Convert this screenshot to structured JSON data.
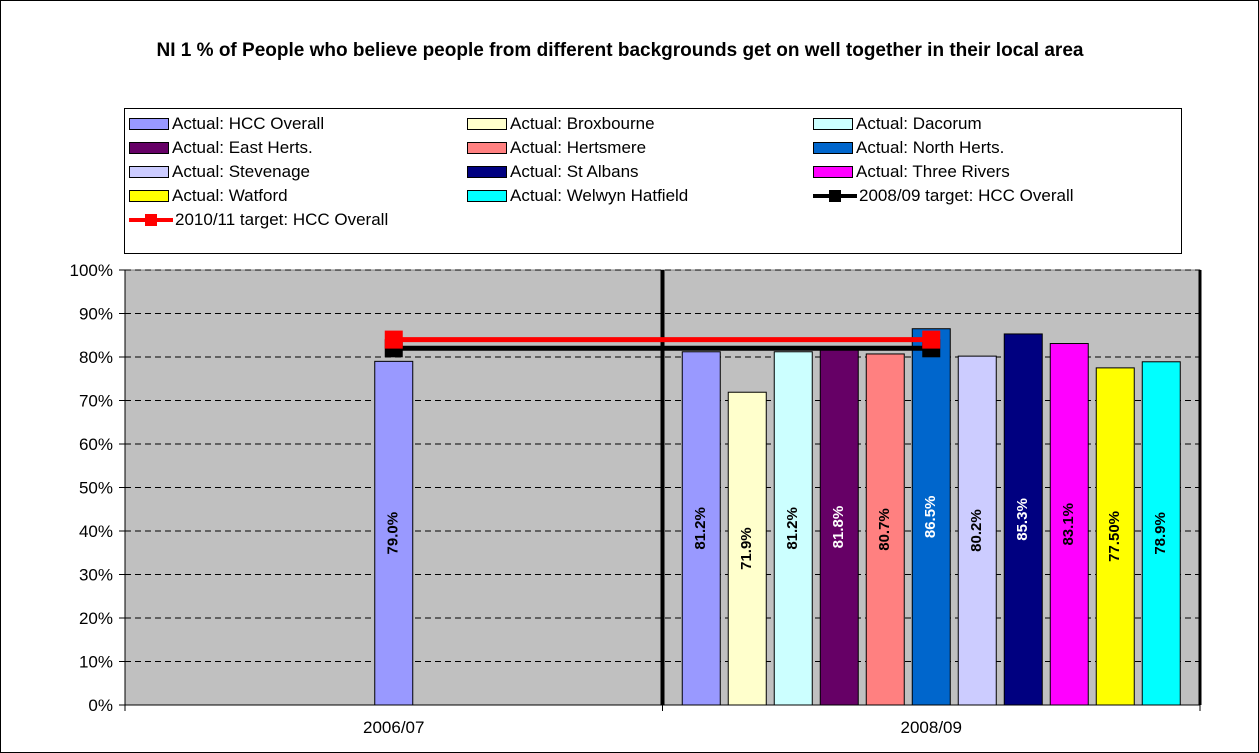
{
  "chart_data": {
    "type": "bar",
    "title": "NI 1 % of People who believe people from different backgrounds get on well together in their local area",
    "categories": [
      "2006/07",
      "2008/09"
    ],
    "ylim": [
      0,
      100
    ],
    "yticks": [
      "0%",
      "10%",
      "20%",
      "30%",
      "40%",
      "50%",
      "60%",
      "70%",
      "80%",
      "90%",
      "100%"
    ],
    "grid": true,
    "legend_position": "top",
    "plot_background": "#c0c0c0",
    "series": [
      {
        "name": "Actual: HCC Overall",
        "color": "#9999ff",
        "values": [
          79.0,
          81.2
        ],
        "labels": [
          "79.0%",
          "81.2%"
        ],
        "label_color": "#000000"
      },
      {
        "name": "Actual: Broxbourne",
        "color": "#ffffcc",
        "values": [
          null,
          71.9
        ],
        "labels": [
          "",
          "71.9%"
        ],
        "label_color": "#000000"
      },
      {
        "name": "Actual: Dacorum",
        "color": "#ccffff",
        "values": [
          null,
          81.2
        ],
        "labels": [
          "",
          "81.2%"
        ],
        "label_color": "#000000"
      },
      {
        "name": "Actual: East Herts.",
        "color": "#660066",
        "values": [
          null,
          81.8
        ],
        "labels": [
          "",
          "81.8%"
        ],
        "label_color": "#ffffff"
      },
      {
        "name": "Actual: Hertsmere",
        "color": "#ff8080",
        "values": [
          null,
          80.7
        ],
        "labels": [
          "",
          "80.7%"
        ],
        "label_color": "#000000"
      },
      {
        "name": "Actual: North Herts.",
        "color": "#0066cc",
        "values": [
          null,
          86.5
        ],
        "labels": [
          "",
          "86.5%"
        ],
        "label_color": "#ffffff"
      },
      {
        "name": "Actual: Stevenage",
        "color": "#ccccff",
        "values": [
          null,
          80.2
        ],
        "labels": [
          "",
          "80.2%"
        ],
        "label_color": "#000000"
      },
      {
        "name": "Actual: St Albans",
        "color": "#000080",
        "values": [
          null,
          85.3
        ],
        "labels": [
          "",
          "85.3%"
        ],
        "label_color": "#ffffff"
      },
      {
        "name": "Actual: Three Rivers",
        "color": "#ff00ff",
        "values": [
          null,
          83.1
        ],
        "labels": [
          "",
          "83.1%"
        ],
        "label_color": "#000000"
      },
      {
        "name": "Actual: Watford",
        "color": "#ffff00",
        "values": [
          null,
          77.5
        ],
        "labels": [
          "",
          "77.50%"
        ],
        "label_color": "#000000"
      },
      {
        "name": "Actual: Welwyn Hatfield",
        "color": "#00ffff",
        "values": [
          null,
          78.9
        ],
        "labels": [
          "",
          "78.9%"
        ],
        "label_color": "#000000"
      }
    ],
    "targets": [
      {
        "name": "2008/09 target: HCC Overall",
        "color": "#000000",
        "value": 82
      },
      {
        "name": "2010/11 target: HCC Overall",
        "color": "#ff0000",
        "value": 84
      }
    ]
  }
}
